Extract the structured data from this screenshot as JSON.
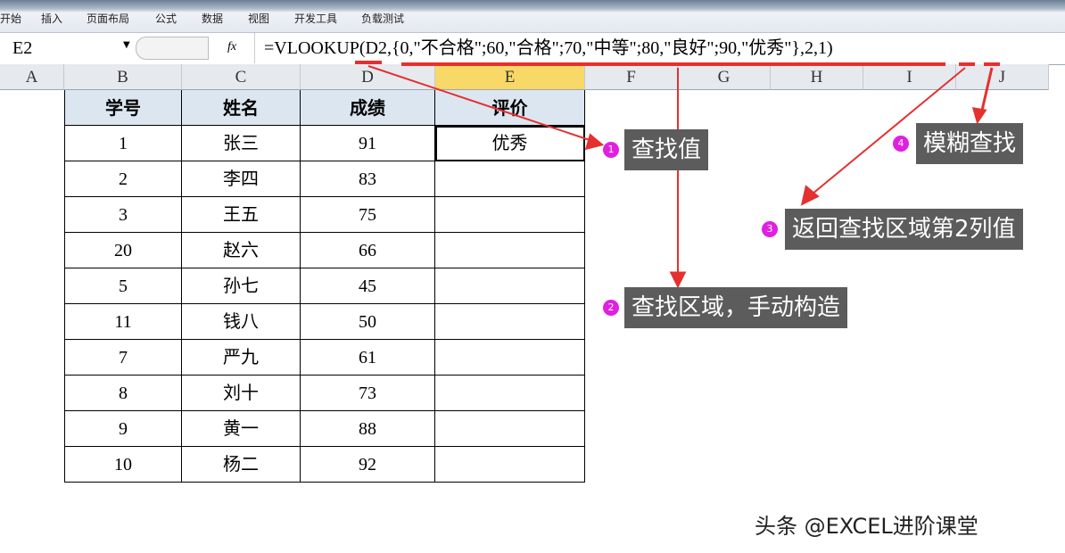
{
  "ribbon": {
    "tabs": [
      "开始",
      "插入",
      "页面布局",
      "公式",
      "数据",
      "视图",
      "开发工具",
      "负载测试"
    ]
  },
  "formula_bar": {
    "name_box": "E2",
    "fx_icon": "fx",
    "formula": "=VLOOKUP(D2,{0,\"不合格\";60,\"合格\";70,\"中等\";80,\"良好\";90,\"优秀\"},2,1)"
  },
  "columns": [
    "A",
    "B",
    "C",
    "D",
    "E",
    "F",
    "G",
    "H",
    "I",
    "J"
  ],
  "selected_column": "E",
  "table": {
    "headers": [
      "学号",
      "姓名",
      "成绩",
      "评价"
    ],
    "rows": [
      [
        "1",
        "张三",
        "91",
        "优秀"
      ],
      [
        "2",
        "李四",
        "83",
        ""
      ],
      [
        "3",
        "王五",
        "75",
        ""
      ],
      [
        "20",
        "赵六",
        "66",
        ""
      ],
      [
        "5",
        "孙七",
        "45",
        ""
      ],
      [
        "11",
        "钱八",
        "50",
        ""
      ],
      [
        "7",
        "严九",
        "61",
        ""
      ],
      [
        "8",
        "刘十",
        "73",
        ""
      ],
      [
        "9",
        "黄一",
        "88",
        ""
      ],
      [
        "10",
        "杨二",
        "92",
        ""
      ]
    ]
  },
  "annotations": [
    {
      "num": "1",
      "text": "查找值"
    },
    {
      "num": "2",
      "text": "查找区域，手动构造"
    },
    {
      "num": "3",
      "text": "返回查找区域第2列值"
    },
    {
      "num": "4",
      "text": "模糊查找"
    }
  ],
  "watermark": "头条 @EXCEL进阶课堂",
  "colors": {
    "accent_red": "#e53030",
    "callout_bg": "#5c5c5c",
    "badge": "#e020e0",
    "header_fill": "#dce6f1",
    "selected_col": "#f8d866"
  }
}
